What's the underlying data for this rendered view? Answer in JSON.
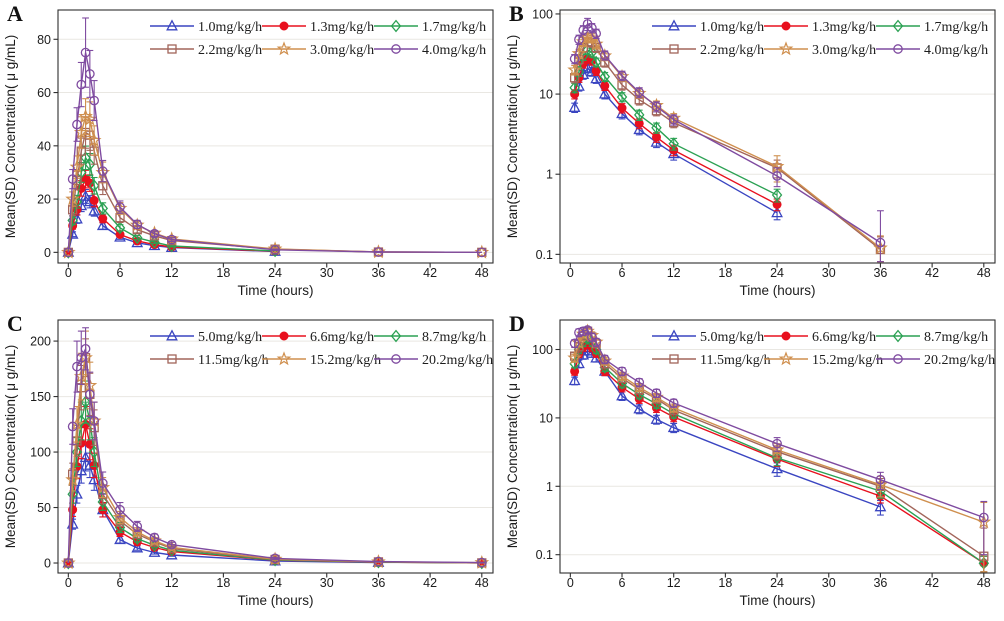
{
  "figure": {
    "background": "#ffffff",
    "panels": [
      {
        "letter": "A"
      },
      {
        "letter": "B"
      },
      {
        "letter": "C"
      },
      {
        "letter": "D"
      }
    ]
  },
  "style": {
    "colors": {
      "blue": "#3a45c1",
      "red": "#e8101e",
      "green": "#2ba153",
      "brown": "#a2655a",
      "tan": "#cf8f4e",
      "purple": "#7f4ba0"
    },
    "gridline": "#e9e7e2",
    "axis": "#2f2f2f",
    "text": "#1c1c1c"
  },
  "chart_data": [
    {
      "panel": "A",
      "type": "line",
      "y_scale": "linear",
      "xlabel": "Time (hours)",
      "ylabel": "Mean(SD) Concentration( μ g/mL)",
      "x": [
        0,
        0.5,
        1,
        1.5,
        2,
        2.5,
        3,
        4,
        6,
        8,
        10,
        12,
        24,
        36,
        48
      ],
      "xticks": [
        0,
        6,
        12,
        18,
        24,
        30,
        36,
        42,
        48
      ],
      "yticks": [
        0,
        20,
        40,
        60,
        80
      ],
      "xlim": [
        -1.2,
        49.3
      ],
      "ylim": [
        -4,
        91
      ],
      "grid": true,
      "legend_position": "top-inside",
      "series": [
        {
          "name": "1.0mg/kg/h",
          "color": "blue",
          "marker": "triangle",
          "values": [
            0,
            6.8,
            12.5,
            17.5,
            21,
            19,
            15.5,
            10,
            5.7,
            3.6,
            2.5,
            1.8,
            0.33,
            null,
            null
          ],
          "sd": [
            0,
            0.9,
            1.6,
            2.2,
            2.6,
            2.3,
            1.9,
            1.3,
            0.8,
            0.5,
            0.35,
            0.3,
            0.06,
            null,
            null
          ]
        },
        {
          "name": "1.3mg/kg/h",
          "color": "red",
          "marker": "circle-filled",
          "values": [
            0,
            10,
            16,
            24,
            27.5,
            26,
            19.5,
            12.7,
            6.7,
            4.3,
            2.9,
            2.0,
            0.42,
            null,
            null
          ],
          "sd": [
            0,
            1.3,
            2.0,
            2.9,
            3.3,
            3.1,
            2.4,
            1.6,
            0.9,
            0.6,
            0.4,
            0.3,
            0.07,
            null,
            null
          ]
        },
        {
          "name": "1.7mg/kg/h",
          "color": "green",
          "marker": "diamond",
          "values": [
            0,
            12,
            19,
            30,
            35.5,
            33,
            25,
            16.5,
            9.2,
            5.5,
            3.8,
            2.4,
            0.55,
            null,
            null
          ],
          "sd": [
            0,
            1.6,
            2.4,
            3.7,
            4.4,
            4.1,
            3.1,
            2.1,
            1.2,
            0.8,
            0.55,
            0.4,
            0.1,
            null,
            null
          ]
        },
        {
          "name": "2.2mg/kg/h",
          "color": "brown",
          "marker": "square",
          "values": [
            0,
            16,
            27,
            38,
            45,
            44,
            38,
            25,
            13,
            8.5,
            6.2,
            4.4,
            1.2,
            0.115,
            0
          ],
          "sd": [
            0,
            2.2,
            3.5,
            4.9,
            5.9,
            5.7,
            4.9,
            3.3,
            1.8,
            1.2,
            0.85,
            0.6,
            0.3,
            0.05,
            0
          ]
        },
        {
          "name": "3.0mg/kg/h",
          "color": "tan",
          "marker": "star",
          "values": [
            0,
            20,
            32,
            45,
            51,
            50,
            42,
            30,
            16.5,
            10.2,
            7.2,
            5.0,
            1.25,
            0.12,
            0
          ],
          "sd": [
            0,
            2.7,
            4.2,
            5.9,
            6.7,
            6.5,
            5.5,
            3.9,
            2.2,
            1.4,
            1.0,
            0.7,
            0.45,
            0.05,
            0
          ]
        },
        {
          "name": "4.0mg/kg/h",
          "color": "purple",
          "marker": "circle",
          "values": [
            0,
            27.5,
            48,
            63,
            75,
            67,
            57,
            30.5,
            17,
            10.5,
            7.0,
            4.8,
            0.95,
            0.14,
            0
          ],
          "sd": [
            0,
            3.6,
            6.3,
            8.3,
            13,
            8.8,
            7.5,
            4.0,
            2.3,
            1.5,
            1.0,
            0.7,
            0.25,
            0.21,
            0
          ]
        }
      ]
    },
    {
      "panel": "B",
      "type": "line",
      "y_scale": "log",
      "xlabel": "Time (hours)",
      "ylabel": "Mean(SD) Concentration( μ g/mL)",
      "x": [
        0,
        0.5,
        1,
        1.5,
        2,
        2.5,
        3,
        4,
        6,
        8,
        10,
        12,
        24,
        36,
        48
      ],
      "xticks": [
        0,
        6,
        12,
        18,
        24,
        30,
        36,
        42,
        48
      ],
      "yticks": [
        0.1,
        1,
        10,
        100
      ],
      "xlim": [
        -1.2,
        49.3
      ],
      "ylim": [
        0.078,
        112
      ],
      "grid": true,
      "legend_position": "top-inside",
      "series": [
        {
          "name": "1.0mg/kg/h",
          "color": "blue",
          "marker": "triangle",
          "values": [
            0,
            6.8,
            12.5,
            17.5,
            21,
            19,
            15.5,
            10,
            5.7,
            3.6,
            2.5,
            1.8,
            0.33,
            null,
            null
          ],
          "sd": [
            0,
            0.9,
            1.6,
            2.2,
            2.6,
            2.3,
            1.9,
            1.3,
            0.8,
            0.5,
            0.35,
            0.3,
            0.06,
            null,
            null
          ]
        },
        {
          "name": "1.3mg/kg/h",
          "color": "red",
          "marker": "circle-filled",
          "values": [
            0,
            10,
            16,
            24,
            27.5,
            26,
            19.5,
            12.7,
            6.7,
            4.3,
            2.9,
            2.0,
            0.42,
            null,
            null
          ],
          "sd": [
            0,
            1.3,
            2.0,
            2.9,
            3.3,
            3.1,
            2.4,
            1.6,
            0.9,
            0.6,
            0.4,
            0.3,
            0.07,
            null,
            null
          ]
        },
        {
          "name": "1.7mg/kg/h",
          "color": "green",
          "marker": "diamond",
          "values": [
            0,
            12,
            19,
            30,
            35.5,
            33,
            25,
            16.5,
            9.2,
            5.5,
            3.8,
            2.4,
            0.55,
            null,
            null
          ],
          "sd": [
            0,
            1.6,
            2.4,
            3.7,
            4.4,
            4.1,
            3.1,
            2.1,
            1.2,
            0.8,
            0.55,
            0.4,
            0.1,
            null,
            null
          ]
        },
        {
          "name": "2.2mg/kg/h",
          "color": "brown",
          "marker": "square",
          "values": [
            0,
            16,
            27,
            38,
            45,
            44,
            38,
            25,
            13,
            8.5,
            6.2,
            4.4,
            1.2,
            0.115,
            0
          ],
          "sd": [
            0,
            2.2,
            3.5,
            4.9,
            5.9,
            5.7,
            4.9,
            3.3,
            1.8,
            1.2,
            0.85,
            0.6,
            0.3,
            0.05,
            0
          ]
        },
        {
          "name": "3.0mg/kg/h",
          "color": "tan",
          "marker": "star",
          "values": [
            0,
            20,
            32,
            45,
            51,
            50,
            42,
            30,
            16.5,
            10.2,
            7.2,
            5.0,
            1.25,
            0.12,
            0
          ],
          "sd": [
            0,
            2.7,
            4.2,
            5.9,
            6.7,
            6.5,
            5.5,
            3.9,
            2.2,
            1.4,
            1.0,
            0.7,
            0.45,
            0.05,
            0
          ]
        },
        {
          "name": "4.0mg/kg/h",
          "color": "purple",
          "marker": "circle",
          "values": [
            0,
            27.5,
            48,
            63,
            75,
            67,
            57,
            30.5,
            17,
            10.5,
            7.0,
            4.8,
            0.95,
            0.14,
            0
          ],
          "sd": [
            0,
            3.6,
            6.3,
            8.3,
            13,
            8.8,
            7.5,
            4.0,
            2.3,
            1.5,
            1.0,
            0.7,
            0.25,
            0.21,
            0
          ]
        }
      ]
    },
    {
      "panel": "C",
      "type": "line",
      "y_scale": "linear",
      "xlabel": "Time (hours)",
      "ylabel": "Mean(SD) Concentration( μ g/mL)",
      "x": [
        0,
        0.5,
        1,
        1.5,
        2,
        2.5,
        3,
        4,
        6,
        8,
        10,
        12,
        24,
        36,
        48
      ],
      "xticks": [
        0,
        6,
        12,
        18,
        24,
        30,
        36,
        42,
        48
      ],
      "yticks": [
        0,
        50,
        100,
        150,
        200
      ],
      "xlim": [
        -1.2,
        49.3
      ],
      "ylim": [
        -9,
        219
      ],
      "grid": true,
      "legend_position": "top-inside",
      "series": [
        {
          "name": "5.0mg/kg/h",
          "color": "blue",
          "marker": "triangle",
          "values": [
            0,
            35,
            62,
            83,
            95,
            88,
            75,
            48,
            21,
            13.5,
            9.5,
            7.2,
            1.8,
            0.5,
            null
          ],
          "sd": [
            0,
            4.5,
            8,
            11,
            12,
            11,
            9.5,
            6.5,
            3.0,
            2.0,
            1.4,
            1.1,
            0.4,
            0.12,
            null
          ]
        },
        {
          "name": "6.6mg/kg/h",
          "color": "red",
          "marker": "circle-filled",
          "values": [
            0,
            48,
            87,
            108,
            125,
            107,
            88,
            48,
            28,
            19,
            14,
            10.3,
            2.5,
            0.72,
            0.075
          ],
          "sd": [
            0,
            6,
            11,
            14,
            16,
            14,
            11,
            6.5,
            4.0,
            2.7,
            2.0,
            1.5,
            0.55,
            0.15,
            0.02
          ]
        },
        {
          "name": "8.7mg/kg/h",
          "color": "green",
          "marker": "diamond",
          "values": [
            0,
            62,
            100,
            128,
            145,
            128,
            100,
            55,
            32,
            22,
            16,
            11.5,
            2.6,
            0.85,
            0.075
          ],
          "sd": [
            0,
            8,
            13,
            17,
            19,
            17,
            13,
            7.5,
            4.5,
            3.0,
            2.2,
            1.6,
            0.6,
            0.18,
            0.02
          ]
        },
        {
          "name": "11.5mg/kg/h",
          "color": "brown",
          "marker": "square",
          "values": [
            0,
            80,
            110,
            158,
            185,
            152,
            122,
            62,
            38,
            26,
            19,
            13,
            3.2,
            1.0,
            0.095
          ],
          "sd": [
            0,
            10,
            14,
            20,
            17,
            19,
            16,
            8.5,
            5.0,
            3.5,
            2.6,
            1.8,
            0.7,
            0.3,
            0.15
          ]
        },
        {
          "name": "15.2mg/kg/h",
          "color": "tan",
          "marker": "star",
          "values": [
            0,
            75,
            125,
            168,
            185,
            160,
            128,
            68,
            41,
            28,
            20,
            14,
            3.4,
            1.05,
            0.3
          ],
          "sd": [
            0,
            10,
            16,
            21,
            24,
            21,
            17,
            9,
            5.5,
            3.8,
            2.7,
            1.9,
            0.8,
            0.35,
            0.28
          ]
        },
        {
          "name": "20.2mg/kg/h",
          "color": "purple",
          "marker": "circle",
          "values": [
            0,
            123,
            177,
            185,
            193,
            152,
            128,
            72,
            48,
            33,
            23,
            16.5,
            4.2,
            1.25,
            0.35
          ],
          "sd": [
            0,
            16,
            23,
            24,
            19,
            20,
            17,
            10,
            6.5,
            4.5,
            3.1,
            2.2,
            0.95,
            0.35,
            0.25
          ]
        }
      ]
    },
    {
      "panel": "D",
      "type": "line",
      "y_scale": "log",
      "xlabel": "Time (hours)",
      "ylabel": "Mean(SD) Concentration( μ g/mL)",
      "x": [
        0,
        0.5,
        1,
        1.5,
        2,
        2.5,
        3,
        4,
        6,
        8,
        10,
        12,
        24,
        36,
        48
      ],
      "xticks": [
        0,
        6,
        12,
        18,
        24,
        30,
        36,
        42,
        48
      ],
      "yticks": [
        0.1,
        1,
        10,
        100
      ],
      "xlim": [
        -1.2,
        49.3
      ],
      "ylim": [
        0.054,
        270
      ],
      "grid": true,
      "legend_position": "top-inside",
      "series": [
        {
          "name": "5.0mg/kg/h",
          "color": "blue",
          "marker": "triangle",
          "values": [
            0,
            35,
            62,
            83,
            95,
            88,
            75,
            48,
            21,
            13.5,
            9.5,
            7.2,
            1.8,
            0.5,
            null
          ],
          "sd": [
            0,
            4.5,
            8,
            11,
            12,
            11,
            9.5,
            6.5,
            3.0,
            2.0,
            1.4,
            1.1,
            0.4,
            0.12,
            null
          ]
        },
        {
          "name": "6.6mg/kg/h",
          "color": "red",
          "marker": "circle-filled",
          "values": [
            0,
            48,
            87,
            108,
            125,
            107,
            88,
            48,
            28,
            19,
            14,
            10.3,
            2.5,
            0.72,
            0.075
          ],
          "sd": [
            0,
            6,
            11,
            14,
            16,
            14,
            11,
            6.5,
            4.0,
            2.7,
            2.0,
            1.5,
            0.55,
            0.15,
            0.02
          ]
        },
        {
          "name": "8.7mg/kg/h",
          "color": "green",
          "marker": "diamond",
          "values": [
            0,
            62,
            100,
            128,
            145,
            128,
            100,
            55,
            32,
            22,
            16,
            11.5,
            2.6,
            0.85,
            0.075
          ],
          "sd": [
            0,
            8,
            13,
            17,
            19,
            17,
            13,
            7.5,
            4.5,
            3.0,
            2.2,
            1.6,
            0.6,
            0.18,
            0.02
          ]
        },
        {
          "name": "11.5mg/kg/h",
          "color": "brown",
          "marker": "square",
          "values": [
            0,
            80,
            110,
            158,
            185,
            152,
            122,
            62,
            38,
            26,
            19,
            13,
            3.2,
            1.0,
            0.095
          ],
          "sd": [
            0,
            10,
            14,
            20,
            17,
            19,
            16,
            8.5,
            5.0,
            3.5,
            2.6,
            1.8,
            0.7,
            0.3,
            0.15
          ]
        },
        {
          "name": "15.2mg/kg/h",
          "color": "tan",
          "marker": "star",
          "values": [
            0,
            75,
            125,
            168,
            185,
            160,
            128,
            68,
            41,
            28,
            20,
            14,
            3.4,
            1.05,
            0.3
          ],
          "sd": [
            0,
            10,
            16,
            21,
            24,
            21,
            17,
            9,
            5.5,
            3.8,
            2.7,
            1.9,
            0.8,
            0.35,
            0.28
          ]
        },
        {
          "name": "20.2mg/kg/h",
          "color": "purple",
          "marker": "circle",
          "values": [
            0,
            123,
            177,
            185,
            193,
            152,
            128,
            72,
            48,
            33,
            23,
            16.5,
            4.2,
            1.25,
            0.35
          ],
          "sd": [
            0,
            16,
            23,
            24,
            19,
            20,
            17,
            10,
            6.5,
            4.5,
            3.1,
            2.2,
            0.95,
            0.35,
            0.25
          ]
        }
      ]
    }
  ]
}
